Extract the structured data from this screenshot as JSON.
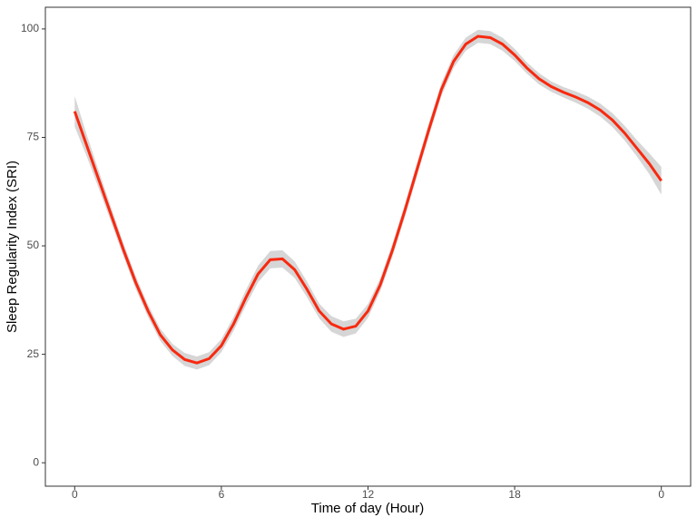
{
  "chart_data": {
    "type": "line",
    "xlabel": "Time of day (Hour)",
    "ylabel": "Sleep Regularity Index (SRI)",
    "x": [
      0,
      0.5,
      1,
      1.5,
      2,
      2.5,
      3,
      3.5,
      4,
      4.5,
      5,
      5.5,
      6,
      6.5,
      7,
      7.5,
      8,
      8.5,
      9,
      9.5,
      10,
      10.5,
      11,
      11.5,
      12,
      12.5,
      13,
      13.5,
      14,
      14.5,
      15,
      15.5,
      16,
      16.5,
      17,
      17.5,
      18,
      18.5,
      19,
      19.5,
      20,
      20.5,
      21,
      21.5,
      22,
      22.5,
      23,
      23.5,
      24
    ],
    "values": [
      81,
      73,
      65,
      57,
      49,
      41.5,
      35,
      29.5,
      26,
      23.8,
      23,
      24,
      27,
      32,
      38,
      43.5,
      46.8,
      47,
      44.5,
      40,
      35,
      32,
      30.8,
      31.5,
      35,
      41,
      49,
      58,
      67.5,
      77,
      86,
      92.5,
      96.5,
      98.3,
      98,
      96.5,
      94,
      91,
      88.5,
      86.7,
      85.4,
      84.3,
      83,
      81.3,
      79,
      76,
      72.5,
      69,
      65
    ],
    "band_lower": [
      77.5,
      70.5,
      63,
      55.3,
      47.5,
      40,
      33.6,
      28.1,
      24.6,
      22.3,
      21.5,
      22.5,
      25.5,
      30.4,
      36.2,
      41.6,
      44.8,
      45,
      42.6,
      38.2,
      33.3,
      30.2,
      29,
      29.8,
      33.4,
      39.5,
      47.5,
      56.5,
      66,
      75.5,
      84.5,
      91,
      95,
      96.8,
      96.5,
      95,
      92.6,
      89.7,
      87.2,
      85.5,
      84.2,
      83,
      81.6,
      79.8,
      77.4,
      74.3,
      70.6,
      66.6,
      61.8
    ],
    "band_upper": [
      84.5,
      75.5,
      67,
      58.7,
      50.5,
      43,
      36.4,
      30.9,
      27.4,
      25.3,
      24.5,
      25.5,
      28.5,
      33.6,
      39.8,
      45.4,
      48.8,
      49,
      46.4,
      41.8,
      36.7,
      33.8,
      32.6,
      33.2,
      36.6,
      42.5,
      50.5,
      59.5,
      69,
      78.5,
      87.5,
      94,
      98,
      99.8,
      99.5,
      98,
      95.4,
      92.3,
      89.8,
      87.9,
      86.6,
      85.6,
      84.4,
      82.8,
      80.6,
      77.7,
      74.4,
      71.4,
      68.2
    ],
    "color": "#f8290f",
    "band_color": "#d6d6d6",
    "xlim": [
      -1.2,
      25.2
    ],
    "xticks": [
      0,
      6,
      12,
      18,
      {
        "value": 24,
        "label": "0"
      }
    ],
    "ylim": [
      -5.4,
      105
    ],
    "yticks": [
      0,
      25,
      50,
      75,
      100
    ]
  }
}
